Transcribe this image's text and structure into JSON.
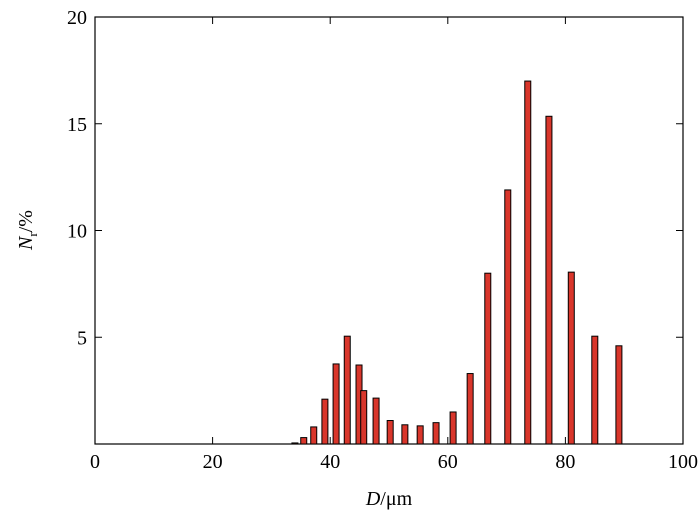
{
  "chart_data": {
    "type": "bar",
    "x_label": {
      "main": "D",
      "unit": "/μm"
    },
    "y_label": {
      "main": "N",
      "sub": "r",
      "unit": "/%"
    },
    "x": [
      34,
      35.5,
      37.2,
      39.1,
      41.0,
      42.9,
      44.9,
      45.7,
      47.8,
      50.2,
      52.7,
      55.3,
      58.0,
      60.9,
      63.8,
      66.8,
      70.2,
      73.6,
      77.2,
      81.0,
      85.0,
      89.1
    ],
    "values": [
      0.05,
      0.3,
      0.8,
      2.1,
      3.75,
      5.05,
      3.7,
      2.5,
      2.15,
      1.1,
      0.9,
      0.85,
      1.0,
      1.5,
      3.3,
      8.0,
      11.9,
      17.0,
      15.35,
      8.05,
      5.05,
      4.6
    ],
    "color": "#d9362b",
    "xlim": [
      0,
      100
    ],
    "xticks": [
      0,
      20,
      40,
      60,
      80,
      100
    ],
    "ylim": [
      0,
      20
    ],
    "yticks": [
      5,
      10,
      15,
      20
    ]
  }
}
